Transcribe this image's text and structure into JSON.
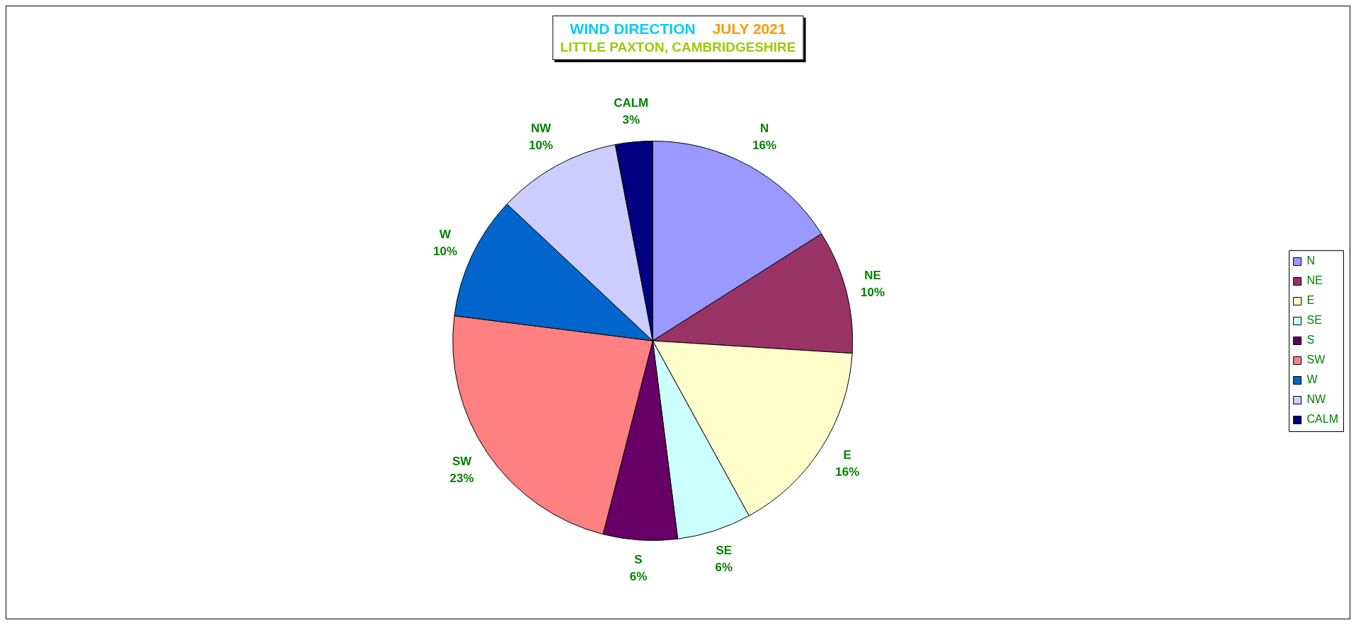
{
  "chart_data": {
    "type": "pie",
    "title": "WIND DIRECTION   JULY 2021",
    "subtitle": "LITTLE PAXTON, CAMBRIDGESHIRE",
    "categories": [
      "N",
      "NE",
      "E",
      "SE",
      "S",
      "SW",
      "W",
      "NW",
      "CALM"
    ],
    "values": [
      16,
      10,
      16,
      6,
      6,
      23,
      10,
      10,
      3
    ],
    "colors": [
      "#9999ff",
      "#993366",
      "#ffffcc",
      "#ccffff",
      "#660066",
      "#ff8080",
      "#0066cc",
      "#ccccff",
      "#000080"
    ],
    "value_labels": [
      "16%",
      "10%",
      "16%",
      "6%",
      "6%",
      "23%",
      "10%",
      "10%",
      "3%"
    ],
    "legend": "right"
  }
}
